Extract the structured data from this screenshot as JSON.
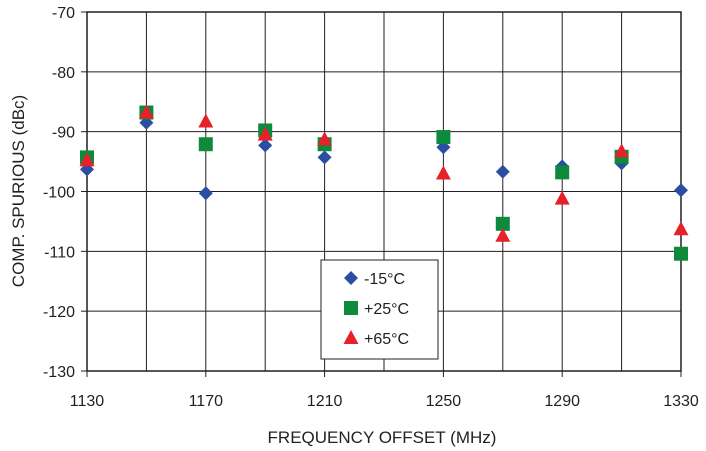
{
  "chart_data": {
    "type": "scatter",
    "title": "",
    "xlabel": "FREQUENCY OFFSET (MHz)",
    "ylabel": "COMP. SPURIOUS (dBc)",
    "xlim": [
      1130,
      1330
    ],
    "ylim": [
      -130,
      -70
    ],
    "xticks": [
      "1130",
      "1170",
      "1210",
      "1250",
      "1290",
      "1330"
    ],
    "yticks": [
      "-70",
      "-80",
      "-90",
      "-100",
      "-110",
      "-120",
      "-130"
    ],
    "grid": true,
    "legend": "bottom-center",
    "series": [
      {
        "name": "-15°C",
        "marker": "diamond",
        "color": "#2b4ea2",
        "points": [
          {
            "x": 1130,
            "y": -96.3
          },
          {
            "x": 1150,
            "y": -88.5
          },
          {
            "x": 1170,
            "y": -100.3
          },
          {
            "x": 1190,
            "y": -92.3
          },
          {
            "x": 1210,
            "y": -94.3
          },
          {
            "x": 1250,
            "y": -92.6
          },
          {
            "x": 1270,
            "y": -96.7
          },
          {
            "x": 1290,
            "y": -95.8
          },
          {
            "x": 1310,
            "y": -95.3
          },
          {
            "x": 1330,
            "y": -99.8
          }
        ]
      },
      {
        "name": "+25°C",
        "marker": "square",
        "color": "#0d8a3c",
        "points": [
          {
            "x": 1130,
            "y": -94.3
          },
          {
            "x": 1150,
            "y": -86.8
          },
          {
            "x": 1170,
            "y": -92.1
          },
          {
            "x": 1190,
            "y": -89.8
          },
          {
            "x": 1210,
            "y": -92.1
          },
          {
            "x": 1250,
            "y": -90.9
          },
          {
            "x": 1270,
            "y": -105.4
          },
          {
            "x": 1290,
            "y": -96.8
          },
          {
            "x": 1310,
            "y": -94.2
          },
          {
            "x": 1330,
            "y": -110.4
          }
        ]
      },
      {
        "name": "+65°C",
        "marker": "triangle",
        "color": "#e8202a",
        "points": [
          {
            "x": 1130,
            "y": -94.8
          },
          {
            "x": 1150,
            "y": -86.8
          },
          {
            "x": 1170,
            "y": -88.3
          },
          {
            "x": 1190,
            "y": -90.5
          },
          {
            "x": 1210,
            "y": -91.3
          },
          {
            "x": 1250,
            "y": -97.0
          },
          {
            "x": 1270,
            "y": -107.4
          },
          {
            "x": 1290,
            "y": -101.2
          },
          {
            "x": 1310,
            "y": -93.3
          },
          {
            "x": 1330,
            "y": -106.3
          }
        ]
      }
    ]
  }
}
